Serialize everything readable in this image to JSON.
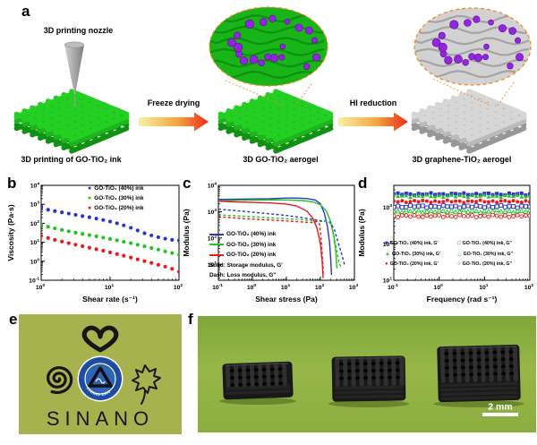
{
  "figure": {
    "panels": {
      "a": {
        "label": "a",
        "nozzle_label": "3D printing nozzle",
        "step1_label": "Freeze drying",
        "step2_label": "HI reduction",
        "caption_left": "3D printing of GO-TiO₂ ink",
        "caption_mid": "3D GO-TiO₂ aerogel",
        "caption_right": "3D graphene-TiO₂ aerogel"
      },
      "b": {
        "label": "b"
      },
      "c": {
        "label": "c"
      },
      "d": {
        "label": "d"
      },
      "e": {
        "label": "e",
        "printed_text": "SINANO",
        "logo_text": "SINANO 2006"
      },
      "f": {
        "label": "f",
        "scale_bar": "2 mm"
      }
    },
    "colors": {
      "ink_blue": "#2b35c7",
      "ink_green": "#21c421",
      "ink_red": "#e81b1f",
      "lattice_green_top": "#24cf24",
      "lattice_green_mid": "#1cb51c",
      "lattice_green_dark": "#119111",
      "lattice_gray_top": "#d6d6d6",
      "lattice_gray_mid": "#bababa",
      "lattice_gray_dark": "#979797",
      "tio2_purple": "#9326dd",
      "oval_outline_orange": "#ef8a30",
      "arrow_yellow": "#f8f0a8",
      "arrow_orange": "#f5a33c",
      "arrow_red": "#ee2b1c",
      "photo_e_bg": "#a6b24d",
      "photo_f_bg": "#8fb246",
      "logo_blue": "#1d4ea2",
      "logo_inner_blue": "#2e63b8"
    }
  },
  "chart_data": [
    {
      "id": "b",
      "type": "scatter",
      "xlabel": "Shear rate (s⁻¹)",
      "ylabel": "Viscosity (Pa·s)",
      "xscale": "log",
      "yscale": "log",
      "xlim": [
        1,
        100
      ],
      "ylim": [
        0.1,
        10000
      ],
      "xticks": [
        1,
        10,
        100
      ],
      "yticks": [
        0.1,
        1,
        10,
        100,
        1000,
        10000
      ],
      "grid": false,
      "legend_position": "top-right",
      "x": [
        1,
        1.26,
        1.58,
        2,
        2.51,
        3.16,
        3.98,
        5.01,
        6.31,
        7.94,
        10,
        12.6,
        15.8,
        20,
        25.1,
        31.6,
        39.8,
        50.1,
        63.1,
        79.4,
        100
      ],
      "series": [
        {
          "name": "GO-TiO₂ (40%) ink",
          "color": "#2b35c7",
          "marker": "circle",
          "values": [
            650,
            520,
            440,
            380,
            325,
            280,
            240,
            208,
            178,
            150,
            124,
            100,
            78,
            58,
            42,
            30,
            23,
            18.5,
            15.5,
            13.5,
            12.5
          ]
        },
        {
          "name": "GO-TiO₂ (30%) ink",
          "color": "#21c421",
          "marker": "circle",
          "values": [
            85,
            66,
            54,
            45,
            38,
            32,
            27.5,
            24,
            20.5,
            17.5,
            15,
            12.7,
            10.7,
            9,
            7.4,
            6.1,
            5,
            4.1,
            3.3,
            2.7,
            2.2
          ]
        },
        {
          "name": "GO-TiO₂ (20%) ink",
          "color": "#e81b1f",
          "marker": "circle",
          "values": [
            22,
            17,
            13.5,
            11,
            9,
            7.5,
            6.2,
            5.2,
            4.3,
            3.6,
            2.95,
            2.4,
            1.95,
            1.58,
            1.27,
            1.02,
            0.82,
            0.65,
            0.52,
            0.4,
            0.28
          ]
        }
      ]
    },
    {
      "id": "c",
      "type": "line",
      "xlabel": "Shear stress (Pa)",
      "ylabel": "Modulus (Pa)",
      "xscale": "log",
      "yscale": "log",
      "xlim": [
        0.1,
        1000
      ],
      "ylim": [
        2.5,
        10000
      ],
      "xticks": [
        0.1,
        1,
        10,
        100,
        1000
      ],
      "yticks": [
        10,
        100,
        1000,
        10000
      ],
      "grid": false,
      "legend_position": "lower-left",
      "notes": [
        "Solid: Storage modulus, G'",
        "Dash: Loss modulus, G\""
      ],
      "series": [
        {
          "name": "GO-TiO₂ (40%) ink",
          "color": "#2b35c7",
          "style": "solid",
          "points": [
            [
              0.1,
              2900
            ],
            [
              0.32,
              3000
            ],
            [
              1,
              3050
            ],
            [
              3.2,
              3100
            ],
            [
              10,
              3300
            ],
            [
              20,
              3300
            ],
            [
              40,
              3150
            ],
            [
              70,
              2800
            ],
            [
              100,
              2000
            ],
            [
              130,
              900
            ],
            [
              160,
              280
            ],
            [
              185,
              70
            ],
            [
              200,
              18
            ],
            [
              212,
              4
            ]
          ]
        },
        {
          "name": "GO-TiO₂ (30%) ink",
          "color": "#21c421",
          "style": "solid",
          "points": [
            [
              0.1,
              2600
            ],
            [
              0.32,
              2700
            ],
            [
              1,
              2750
            ],
            [
              3.2,
              2800
            ],
            [
              10,
              2800
            ],
            [
              30,
              2650
            ],
            [
              60,
              2350
            ],
            [
              100,
              1850
            ],
            [
              150,
              1050
            ],
            [
              200,
              420
            ],
            [
              250,
              110
            ],
            [
              285,
              28
            ],
            [
              305,
              7
            ]
          ]
        },
        {
          "name": "GO-TiO₂ (20%) ink",
          "color": "#e81b1f",
          "style": "solid",
          "points": [
            [
              0.1,
              2500
            ],
            [
              0.32,
              2350
            ],
            [
              1,
              2250
            ],
            [
              3.2,
              2150
            ],
            [
              10,
              1950
            ],
            [
              20,
              1650
            ],
            [
              40,
              1050
            ],
            [
              60,
              560
            ],
            [
              80,
              230
            ],
            [
              100,
              60
            ],
            [
              112,
              14
            ],
            [
              120,
              3
            ]
          ]
        },
        {
          "name": "GO-TiO₂ (40%) ink, G\"",
          "color": "#2b35c7",
          "style": "dash",
          "points": [
            [
              0.1,
              1250
            ],
            [
              0.32,
              1100
            ],
            [
              1,
              960
            ],
            [
              3.2,
              830
            ],
            [
              10,
              720
            ],
            [
              30,
              590
            ],
            [
              60,
              510
            ],
            [
              100,
              460
            ],
            [
              150,
              430
            ],
            [
              200,
              390
            ],
            [
              260,
              200
            ],
            [
              330,
              70
            ],
            [
              420,
              25
            ],
            [
              520,
              9
            ]
          ]
        },
        {
          "name": "GO-TiO₂ (30%) ink, G\"",
          "color": "#21c421",
          "style": "dash",
          "points": [
            [
              0.1,
              760
            ],
            [
              0.32,
              700
            ],
            [
              1,
              645
            ],
            [
              3.2,
              590
            ],
            [
              10,
              540
            ],
            [
              30,
              490
            ],
            [
              60,
              450
            ],
            [
              100,
              425
            ],
            [
              150,
              435
            ],
            [
              200,
              360
            ],
            [
              250,
              130
            ],
            [
              300,
              35
            ],
            [
              360,
              11
            ],
            [
              420,
              7
            ]
          ]
        },
        {
          "name": "GO-TiO₂ (20%) ink, G\"",
          "color": "#e81b1f",
          "style": "dash",
          "points": [
            [
              0.1,
              640
            ],
            [
              0.32,
              575
            ],
            [
              1,
              525
            ],
            [
              3.2,
              485
            ],
            [
              10,
              445
            ],
            [
              30,
              405
            ],
            [
              60,
              385
            ],
            [
              80,
              430
            ],
            [
              95,
              330
            ],
            [
              105,
              90
            ],
            [
              115,
              18
            ],
            [
              122,
              4
            ]
          ]
        }
      ]
    },
    {
      "id": "d",
      "type": "scatter-flat",
      "xlabel": "Frequency (rad s⁻¹)",
      "ylabel": "Modulus (Pa)",
      "xscale": "log",
      "yscale": "log",
      "xlim": [
        0.1,
        100
      ],
      "ylim": [
        10,
        4000
      ],
      "xticks": [
        0.1,
        1,
        10,
        100
      ],
      "yticks": [
        10,
        100,
        1000
      ],
      "grid": false,
      "legend_position": "center",
      "points_per_series": 34,
      "series": [
        {
          "name": "GO-TiO₂ (40%) ink, G'",
          "color": "#2b35c7",
          "marker": "square",
          "fill": true,
          "value": 2300
        },
        {
          "name": "GO-TiO₂ (30%) ink, G'",
          "color": "#21c421",
          "marker": "triangle",
          "fill": true,
          "value": 2050
        },
        {
          "name": "GO-TiO₂ (20%) ink, G'",
          "color": "#e81b1f",
          "marker": "circle",
          "fill": true,
          "value": 1450
        },
        {
          "name": "GO-TiO₂ (40%) ink, G\"",
          "color": "#2b35c7",
          "marker": "square",
          "fill": false,
          "value": 1050
        },
        {
          "name": "GO-TiO₂ (30%) ink, G\"",
          "color": "#21c421",
          "marker": "triangle",
          "fill": false,
          "value": 780
        },
        {
          "name": "GO-TiO₂ (20%) ink, G\"",
          "color": "#e81b1f",
          "marker": "circle",
          "fill": false,
          "value": 575
        }
      ]
    }
  ]
}
